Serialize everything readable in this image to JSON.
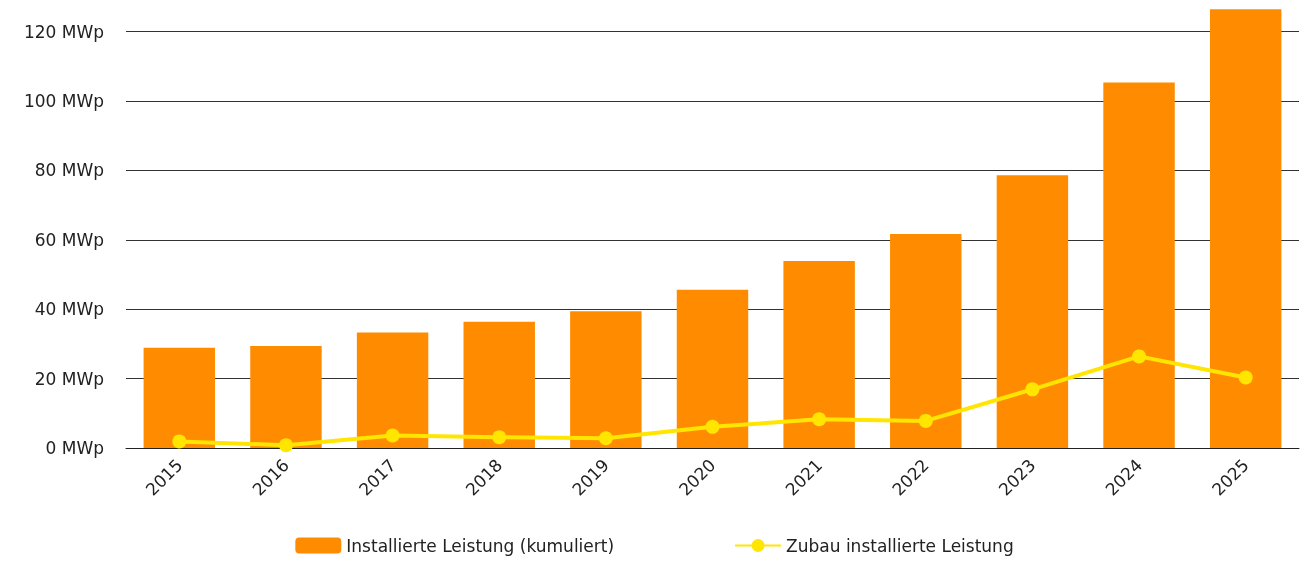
{
  "chart_data": {
    "type": "bar",
    "categories": [
      "2015",
      "2016",
      "2017",
      "2018",
      "2019",
      "2020",
      "2021",
      "2022",
      "2023",
      "2024",
      "2025"
    ],
    "series": [
      {
        "name": "Installierte Leistung (kumuliert)",
        "color": "#ff8c00",
        "values": [
          28.9,
          29.4,
          33.3,
          36.4,
          39.4,
          45.6,
          53.9,
          61.7,
          78.6,
          105.3,
          126.4
        ]
      },
      {
        "name": "Zubau installierte Leistung",
        "type": "line",
        "color": "#ffe500",
        "values": [
          1.9,
          0.8,
          3.6,
          3.1,
          2.8,
          6.1,
          8.3,
          7.8,
          16.9,
          26.4,
          20.3
        ]
      }
    ],
    "ylim": [
      0,
      126.5
    ],
    "yticks": [
      {
        "value": 0,
        "label": "0 MWp"
      },
      {
        "value": 20,
        "label": "20 MWp"
      },
      {
        "value": 40,
        "label": "40 MWp"
      },
      {
        "value": 60,
        "label": "60 MWp"
      },
      {
        "value": 80,
        "label": "80 MWp"
      },
      {
        "value": 100,
        "label": "100 MWp"
      },
      {
        "value": 120,
        "label": "120 MWp"
      }
    ],
    "grid": "y",
    "legend": "bottom",
    "marker": "circle"
  }
}
